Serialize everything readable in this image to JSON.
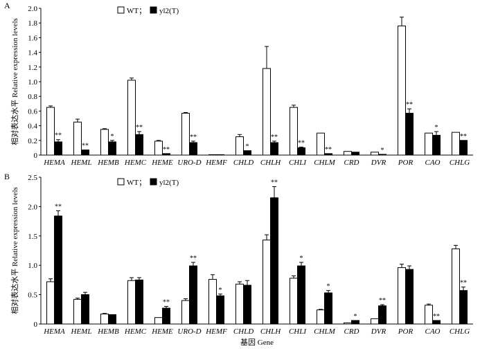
{
  "chart_data": [
    {
      "type": "bar",
      "panel": "A",
      "categories": [
        "HEMA",
        "HEML",
        "HEMB",
        "HEMC",
        "HEME",
        "URO-D",
        "HEMF",
        "CHLD",
        "CHLH",
        "CHLI",
        "CHLM",
        "CRD",
        "DVR",
        "POR",
        "CAO",
        "CHLG"
      ],
      "series": [
        {
          "name": "WT",
          "color": "#ffffff",
          "values": [
            0.65,
            0.45,
            0.35,
            1.02,
            0.19,
            0.57,
            0.0,
            0.25,
            1.18,
            0.65,
            0.3,
            0.05,
            0.04,
            1.76,
            0.3,
            0.31
          ],
          "errors": [
            0.02,
            0.04,
            0.01,
            0.03,
            0.01,
            0.01,
            0.0,
            0.03,
            0.3,
            0.03,
            0.0,
            0.0,
            0.0,
            0.12,
            0.0,
            0.0
          ]
        },
        {
          "name": "yl2(T)",
          "color": "#000000",
          "values": [
            0.18,
            0.07,
            0.18,
            0.28,
            0.02,
            0.17,
            0.0,
            0.06,
            0.17,
            0.1,
            0.02,
            0.04,
            0.01,
            0.57,
            0.27,
            0.2
          ],
          "errors": [
            0.03,
            0.0,
            0.02,
            0.04,
            0.0,
            0.02,
            0.0,
            0.0,
            0.02,
            0.01,
            0.0,
            0.0,
            0.0,
            0.06,
            0.05,
            0.0
          ]
        }
      ],
      "significance": [
        "**",
        "**",
        "*",
        "**",
        "**",
        "**",
        "",
        "*",
        "**",
        "**",
        "**",
        "",
        "*",
        "**",
        "*",
        "**"
      ],
      "ylabel": "相对表达水平 Relative expression levels",
      "xlabel": "",
      "ylim": [
        0,
        2.0
      ],
      "yticks": [
        "0",
        "0.2",
        "0.4",
        "0.6",
        "0.8",
        "1.0",
        "1.2",
        "1.4",
        "1.6",
        "1.8",
        "2.0"
      ],
      "legend_position": "top-center",
      "grid": false
    },
    {
      "type": "bar",
      "panel": "B",
      "categories": [
        "HEMA",
        "HEML",
        "HEMB",
        "HEMC",
        "HEME",
        "URO-D",
        "HEMF",
        "CHLD",
        "CHLH",
        "CHLI",
        "CHLM",
        "CRD",
        "DVR",
        "POR",
        "CAO",
        "CHLG"
      ],
      "series": [
        {
          "name": "WT",
          "color": "#ffffff",
          "values": [
            0.72,
            0.42,
            0.17,
            0.74,
            0.11,
            0.4,
            0.76,
            0.68,
            1.43,
            0.78,
            0.24,
            0.02,
            0.09,
            0.96,
            0.32,
            1.28
          ],
          "errors": [
            0.05,
            0.02,
            0.01,
            0.05,
            0.0,
            0.03,
            0.08,
            0.04,
            0.09,
            0.04,
            0.01,
            0.0,
            0.0,
            0.06,
            0.02,
            0.06
          ]
        },
        {
          "name": "yl2(T)",
          "color": "#000000",
          "values": [
            1.84,
            0.5,
            0.16,
            0.75,
            0.27,
            0.99,
            0.48,
            0.66,
            2.15,
            0.99,
            0.53,
            0.06,
            0.31,
            0.93,
            0.06,
            0.57
          ],
          "errors": [
            0.09,
            0.04,
            0.0,
            0.04,
            0.03,
            0.06,
            0.03,
            0.08,
            0.19,
            0.06,
            0.04,
            0.0,
            0.02,
            0.06,
            0.0,
            0.06
          ]
        }
      ],
      "significance": [
        "**",
        "",
        "",
        "",
        "**",
        "**",
        "*",
        "",
        "**",
        "*",
        "*",
        "*",
        "**",
        "",
        "**",
        "**"
      ],
      "ylabel": "相对表达水平 Relative expression levels",
      "xlabel": "基因 Gene",
      "ylim": [
        0,
        2.5
      ],
      "yticks": [
        "0",
        "0.5",
        "1.0",
        "1.5",
        "2.0",
        "2.5"
      ],
      "legend_position": "top-center",
      "grid": false
    }
  ],
  "legend": {
    "wt_label": "WT；",
    "mutant_label": "yl2(T)"
  },
  "panels": {
    "a_letter": "A",
    "b_letter": "B"
  }
}
